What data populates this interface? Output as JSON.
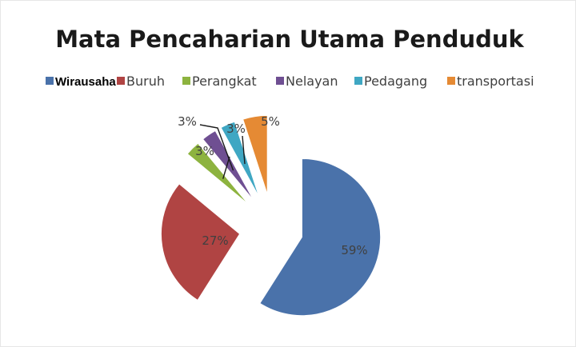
{
  "chart_data": {
    "type": "pie",
    "title": "Mata Pencaharian Utama Penduduk",
    "legend_position": "top",
    "exploded": true,
    "series": [
      {
        "name": "Wirausaha",
        "value": 59,
        "label": "59%",
        "color": "#4a72aa"
      },
      {
        "name": "Buruh",
        "value": 27,
        "label": "27%",
        "color": "#b04443"
      },
      {
        "name": "Perangkat",
        "value": 3,
        "label": "3%",
        "color": "#8db33f"
      },
      {
        "name": "Nelayan",
        "value": 3,
        "label": "3%",
        "color": "#6f4f92"
      },
      {
        "name": "Pedagang",
        "value": 3,
        "label": "3%",
        "color": "#3fa7c3"
      },
      {
        "name": "transportasi",
        "value": 5,
        "label": "5%",
        "color": "#e58a34"
      }
    ]
  }
}
